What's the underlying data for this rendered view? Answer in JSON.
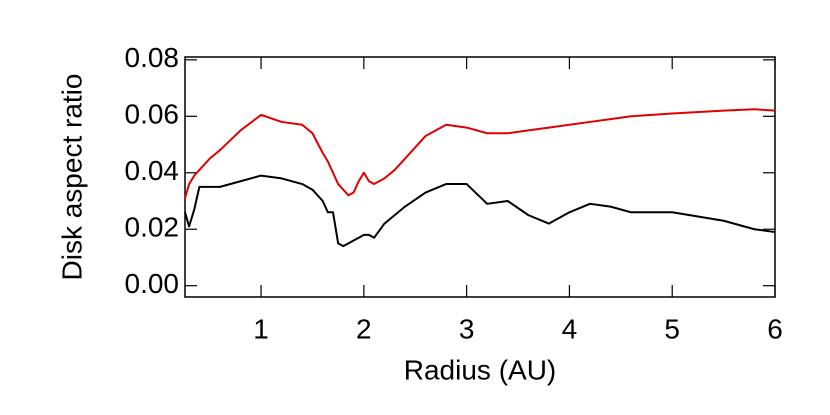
{
  "chart_data": {
    "type": "line",
    "xlabel": "Radius (AU)",
    "ylabel": "Disk aspect ratio",
    "x": [
      0.26,
      0.3,
      0.35,
      0.4,
      0.5,
      0.6,
      0.8,
      1.0,
      1.2,
      1.4,
      1.5,
      1.6,
      1.65,
      1.7,
      1.75,
      1.8,
      1.85,
      1.9,
      1.95,
      2.0,
      2.05,
      2.1,
      2.2,
      2.3,
      2.4,
      2.6,
      2.8,
      3.0,
      3.2,
      3.4,
      3.6,
      3.8,
      4.0,
      4.2,
      4.4,
      4.6,
      5.0,
      5.5,
      5.8,
      6.0
    ],
    "series": [
      {
        "color": "#e00000",
        "values": [
          0.031,
          0.036,
          0.039,
          0.041,
          0.045,
          0.048,
          0.055,
          0.0605,
          0.058,
          0.057,
          0.054,
          0.047,
          0.044,
          0.04,
          0.036,
          0.034,
          0.032,
          0.033,
          0.037,
          0.04,
          0.037,
          0.036,
          0.038,
          0.041,
          0.045,
          0.053,
          0.057,
          0.056,
          0.054,
          0.054,
          0.055,
          0.056,
          0.057,
          0.058,
          0.059,
          0.06,
          0.061,
          0.062,
          0.0625,
          0.062
        ]
      },
      {
        "color": "#000000",
        "values": [
          0.026,
          0.021,
          0.027,
          0.035,
          0.035,
          0.035,
          0.037,
          0.039,
          0.038,
          0.036,
          0.034,
          0.03,
          0.026,
          0.026,
          0.015,
          0.014,
          0.015,
          0.016,
          0.017,
          0.018,
          0.018,
          0.017,
          0.022,
          0.025,
          0.028,
          0.033,
          0.036,
          0.036,
          0.029,
          0.03,
          0.025,
          0.022,
          0.026,
          0.029,
          0.028,
          0.026,
          0.026,
          0.023,
          0.02,
          0.019
        ]
      }
    ],
    "xlim": [
      0.26,
      6
    ],
    "xticks": [
      1,
      2,
      3,
      4,
      5,
      6
    ],
    "ylim": [
      -0.004,
      0.081
    ],
    "yticks": [
      {
        "value": 0,
        "label": "0.00"
      },
      {
        "value": 0.02,
        "label": "0.02"
      },
      {
        "value": 0.04,
        "label": "0.04"
      },
      {
        "value": 0.06,
        "label": "0.06"
      },
      {
        "value": 0.08,
        "label": "0.08"
      }
    ]
  }
}
